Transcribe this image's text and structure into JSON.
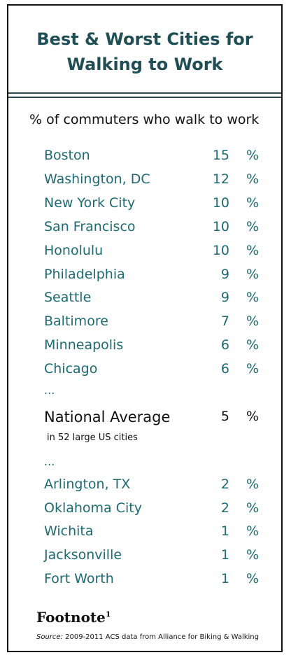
{
  "chart_data": {
    "type": "table",
    "title_line1": "Best & Worst Cities for",
    "title_line2": "Walking to Work",
    "subtitle": "% of commuters who walk to work",
    "unit": "%",
    "ellipsis": "...",
    "best": [
      {
        "city": "Boston",
        "value": 15
      },
      {
        "city": "Washington, DC",
        "value": 12
      },
      {
        "city": "New York City",
        "value": 10
      },
      {
        "city": "San Francisco",
        "value": 10
      },
      {
        "city": "Honolulu",
        "value": 10
      },
      {
        "city": "Philadelphia",
        "value": 9
      },
      {
        "city": "Seattle",
        "value": 9
      },
      {
        "city": "Baltimore",
        "value": 7
      },
      {
        "city": "Minneapolis",
        "value": 6
      },
      {
        "city": "Chicago",
        "value": 6
      }
    ],
    "average": {
      "city": "National Average",
      "value": 5,
      "note": "in 52 large US cities"
    },
    "worst": [
      {
        "city": "Arlington, TX",
        "value": 2
      },
      {
        "city": "Oklahoma City",
        "value": 2
      },
      {
        "city": "Wichita",
        "value": 1
      },
      {
        "city": "Jacksonville",
        "value": 1
      },
      {
        "city": "Fort Worth",
        "value": 1
      }
    ]
  },
  "footer": {
    "logo": "Footnote",
    "logo_sup": "1",
    "source_label": "Source:",
    "source_text": "2009-2011 ACS data from Alliance for Biking & Walking"
  },
  "colors": {
    "title": "#1f4e55",
    "city": "#1d6a73",
    "text": "#111111"
  }
}
